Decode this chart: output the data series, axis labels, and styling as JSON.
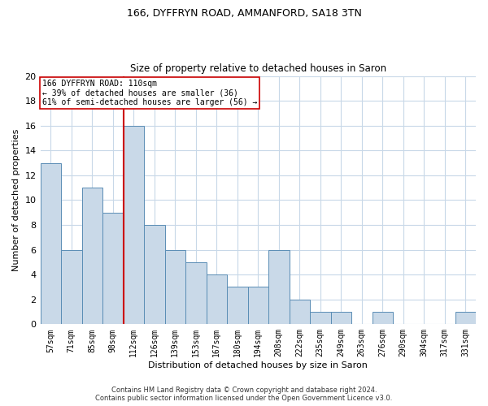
{
  "title1": "166, DYFFRYN ROAD, AMMANFORD, SA18 3TN",
  "title2": "Size of property relative to detached houses in Saron",
  "xlabel": "Distribution of detached houses by size in Saron",
  "ylabel": "Number of detached properties",
  "categories": [
    "57sqm",
    "71sqm",
    "85sqm",
    "98sqm",
    "112sqm",
    "126sqm",
    "139sqm",
    "153sqm",
    "167sqm",
    "180sqm",
    "194sqm",
    "208sqm",
    "222sqm",
    "235sqm",
    "249sqm",
    "263sqm",
    "276sqm",
    "290sqm",
    "304sqm",
    "317sqm",
    "331sqm"
  ],
  "values": [
    13,
    6,
    11,
    9,
    16,
    8,
    6,
    5,
    4,
    3,
    3,
    6,
    2,
    1,
    1,
    0,
    1,
    0,
    0,
    0,
    1
  ],
  "bar_color": "#c9d9e8",
  "bar_edge_color": "#5a8db5",
  "vline_color": "#cc0000",
  "annotation_box_text": "166 DYFFRYN ROAD: 110sqm\n← 39% of detached houses are smaller (36)\n61% of semi-detached houses are larger (56) →",
  "box_edge_color": "#cc0000",
  "ylim": [
    0,
    20
  ],
  "yticks": [
    0,
    2,
    4,
    6,
    8,
    10,
    12,
    14,
    16,
    18,
    20
  ],
  "footer1": "Contains HM Land Registry data © Crown copyright and database right 2024.",
  "footer2": "Contains public sector information licensed under the Open Government Licence v3.0.",
  "background_color": "#ffffff",
  "grid_color": "#c8d8e8",
  "title1_fontsize": 9,
  "title2_fontsize": 8.5,
  "xlabel_fontsize": 8,
  "ylabel_fontsize": 8,
  "ytick_fontsize": 8,
  "xtick_fontsize": 7,
  "annot_fontsize": 7,
  "footer_fontsize": 6
}
